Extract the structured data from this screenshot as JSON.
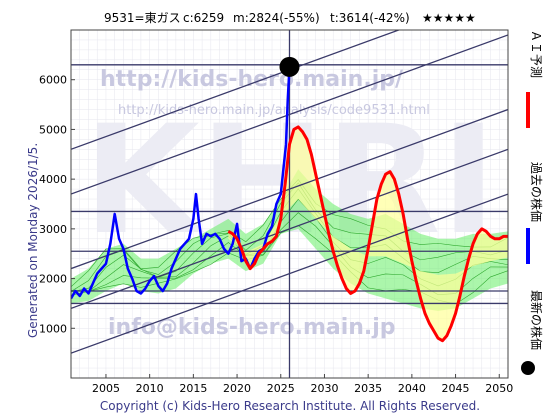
{
  "header": {
    "code_name": "9531=東ガス",
    "current": "c:6259",
    "mean": "m:2824(-55%)",
    "target": "t:3614(-42%)",
    "stars": "★★★★★"
  },
  "watermarks": {
    "big": "KHRI",
    "url1": "http://kids-hero.main.jp/",
    "url2": "http://kids-hero.main.jp/analysis/code9531.html",
    "email": "info@kids-hero.main.jp"
  },
  "side_left": "Generated on Monday 2026/1/5.",
  "footer": "Copyright (c) Kids-Hero Research Institute. All Rights Reserved.",
  "colors": {
    "grid": "#e6e6ee",
    "channel": "#3a3a6a",
    "ai_forecast": "#ff0000",
    "past_price": "#0000ff",
    "band_yellow": "#ffff99",
    "band_green": "#66ee66",
    "latest_dot": "#000000",
    "plot_bg": "#ffffff",
    "watermark": "#d0d0e8"
  },
  "chart_data": {
    "type": "line",
    "x_range": [
      2001,
      2051
    ],
    "y_range": [
      0,
      7000
    ],
    "x_ticks": [
      2005,
      2010,
      2015,
      2020,
      2025,
      2030,
      2035,
      2040,
      2045,
      2050
    ],
    "y_ticks": [
      0,
      1000,
      2000,
      3000,
      4000,
      5000,
      6000
    ],
    "grid": true,
    "legend_position": "right (vertical)",
    "legend": [
      {
        "label": "ＡＩ予測",
        "color": "#ff0000"
      },
      {
        "label": "過去の株価",
        "color": "#0000ff"
      },
      {
        "label": "最新の株価",
        "color": "#000000"
      }
    ],
    "latest_point": {
      "x": 2026.0,
      "y": 6259
    },
    "horizontal_levels": [
      6300,
      3350,
      2550,
      1750,
      1500
    ],
    "channel_lines": [
      {
        "x1": 2001,
        "y1": 4600,
        "x2": 2051,
        "y2": 7800
      },
      {
        "x1": 2001,
        "y1": 3700,
        "x2": 2051,
        "y2": 6900
      },
      {
        "x1": 2001,
        "y1": 2200,
        "x2": 2051,
        "y2": 5400
      },
      {
        "x1": 2001,
        "y1": 1400,
        "x2": 2051,
        "y2": 4600
      },
      {
        "x1": 2001,
        "y1": 500,
        "x2": 2051,
        "y2": 3700
      }
    ],
    "series": [
      {
        "name": "過去の株価",
        "x": [
          2001.0,
          2001.5,
          2002.0,
          2002.5,
          2003.0,
          2003.5,
          2004.0,
          2004.5,
          2005.0,
          2005.5,
          2006.0,
          2006.5,
          2007.0,
          2007.5,
          2008.0,
          2008.5,
          2009.0,
          2009.5,
          2010.0,
          2010.5,
          2011.0,
          2011.5,
          2012.0,
          2012.5,
          2013.0,
          2013.5,
          2014.0,
          2014.5,
          2015.0,
          2015.3,
          2015.6,
          2016.0,
          2016.5,
          2017.0,
          2017.5,
          2018.0,
          2018.5,
          2019.0,
          2019.5,
          2020.0,
          2020.5,
          2021.0,
          2021.5,
          2022.0,
          2022.5,
          2023.0,
          2023.5,
          2024.0,
          2024.5,
          2025.0,
          2025.3,
          2025.6,
          2025.8,
          2026.0
        ],
        "y": [
          1600,
          1750,
          1650,
          1800,
          1700,
          1900,
          2100,
          2200,
          2300,
          2700,
          3300,
          2800,
          2600,
          2200,
          2000,
          1750,
          1700,
          1800,
          1950,
          2050,
          1850,
          1750,
          1900,
          2200,
          2400,
          2600,
          2700,
          2800,
          3200,
          3700,
          3200,
          2700,
          2900,
          2850,
          2900,
          2800,
          2600,
          2500,
          2700,
          3100,
          2350,
          2400,
          2200,
          2400,
          2550,
          2600,
          2900,
          3050,
          3500,
          3700,
          4200,
          4700,
          5600,
          6259
        ]
      },
      {
        "name": "ＡＩ予測",
        "x": [
          2019.0,
          2019.5,
          2020.0,
          2020.5,
          2021.0,
          2021.5,
          2022.0,
          2022.5,
          2023.0,
          2023.5,
          2024.0,
          2024.5,
          2025.0,
          2025.5,
          2026.0,
          2026.5,
          2027.0,
          2027.5,
          2028.0,
          2028.5,
          2029.0,
          2029.5,
          2030.0,
          2030.5,
          2031.0,
          2031.5,
          2032.0,
          2032.5,
          2033.0,
          2033.5,
          2034.0,
          2034.5,
          2035.0,
          2035.5,
          2036.0,
          2036.5,
          2037.0,
          2037.5,
          2038.0,
          2038.5,
          2039.0,
          2039.5,
          2040.0,
          2040.5,
          2041.0,
          2041.5,
          2042.0,
          2042.5,
          2043.0,
          2043.5,
          2044.0,
          2044.5,
          2045.0,
          2045.5,
          2046.0,
          2046.5,
          2047.0,
          2047.5,
          2048.0,
          2048.5,
          2049.0,
          2049.5,
          2050.0,
          2050.5,
          2051.0
        ],
        "y": [
          2950,
          2900,
          2800,
          2600,
          2350,
          2200,
          2300,
          2500,
          2600,
          2700,
          2750,
          2850,
          3200,
          3900,
          4700,
          5000,
          5050,
          4950,
          4800,
          4500,
          4100,
          3700,
          3300,
          2900,
          2550,
          2250,
          2000,
          1800,
          1700,
          1750,
          1900,
          2150,
          2600,
          3100,
          3600,
          3900,
          4100,
          4150,
          4000,
          3700,
          3300,
          2800,
          2350,
          1950,
          1600,
          1300,
          1100,
          950,
          800,
          750,
          850,
          1050,
          1300,
          1650,
          2050,
          2400,
          2700,
          2900,
          3000,
          2950,
          2850,
          2800,
          2800,
          2850,
          2850
        ]
      }
    ],
    "band": {
      "x": [
        2001,
        2003,
        2005,
        2007,
        2009,
        2011,
        2013,
        2015,
        2017,
        2019,
        2021,
        2023,
        2025,
        2027,
        2029,
        2031,
        2033,
        2035,
        2037,
        2039,
        2041,
        2043,
        2045,
        2047,
        2049,
        2051
      ],
      "upper": [
        2000,
        2200,
        2600,
        2700,
        2400,
        2400,
        2600,
        2800,
        3000,
        3200,
        2900,
        3100,
        3600,
        4200,
        3800,
        3500,
        3300,
        3200,
        3300,
        3100,
        2900,
        2800,
        2800,
        2900,
        2900,
        2950
      ],
      "lower": [
        1500,
        1550,
        1750,
        1900,
        1750,
        1700,
        1800,
        2100,
        2300,
        2400,
        2150,
        2300,
        2900,
        3000,
        2600,
        2200,
        1900,
        1700,
        1600,
        1500,
        1400,
        1350,
        1400,
        1600,
        1800,
        1900
      ]
    }
  }
}
